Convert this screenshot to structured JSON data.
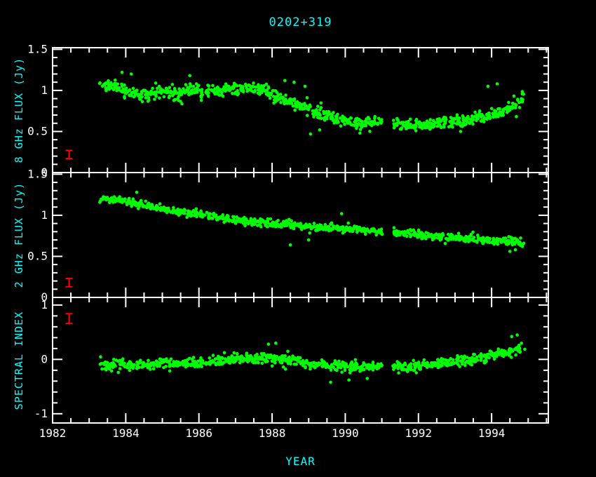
{
  "chart_data": {
    "type": "scatter",
    "title": "0202+319",
    "xlabel": "YEAR",
    "legend": "none",
    "grid": false,
    "x_axis": {
      "min": 1982,
      "max": 1995.55,
      "tick_values": [
        1982,
        1984,
        1986,
        1988,
        1990,
        1992,
        1994
      ],
      "tick_labels": [
        "1982",
        "1984",
        "1986",
        "1988",
        "1990",
        "1992",
        "1994"
      ],
      "minor_step": 0.5
    },
    "data_x_range": [
      1983.35,
      1994.85
    ],
    "gaps": [
      [
        1991.02,
        1991.3
      ]
    ],
    "colors": {
      "background": "#000000",
      "axis": "#ffffff",
      "tick_text": "#ffffff",
      "accent": "#00ffff",
      "data": "#00ff00",
      "error": "#ff0000"
    },
    "panels": [
      {
        "id": "8ghz-flux",
        "ylabel": "8 GHz FLUX (Jy)",
        "ylim": [
          0,
          1.52
        ],
        "ytick_values": [
          0,
          0.5,
          1,
          1.5
        ],
        "ytick_labels": [
          "0",
          "0.5",
          "1",
          "1.5"
        ],
        "minor_step": 0.1,
        "n_points": 850,
        "scatter_sigma": 0.035,
        "trend": [
          [
            1983.35,
            1.07
          ],
          [
            1983.7,
            1.04
          ],
          [
            1984.0,
            1.0
          ],
          [
            1984.35,
            0.96
          ],
          [
            1984.7,
            0.95
          ],
          [
            1985.0,
            0.99
          ],
          [
            1985.4,
            0.97
          ],
          [
            1985.8,
            1.0
          ],
          [
            1986.2,
            0.97
          ],
          [
            1986.6,
            1.0
          ],
          [
            1987.0,
            1.01
          ],
          [
            1987.4,
            1.03
          ],
          [
            1987.8,
            1.02
          ],
          [
            1988.1,
            0.92
          ],
          [
            1988.5,
            0.86
          ],
          [
            1989.0,
            0.78
          ],
          [
            1989.4,
            0.7
          ],
          [
            1989.8,
            0.65
          ],
          [
            1990.2,
            0.62
          ],
          [
            1990.6,
            0.6
          ],
          [
            1991.0,
            0.63
          ],
          [
            1991.4,
            0.6
          ],
          [
            1991.8,
            0.57
          ],
          [
            1992.2,
            0.58
          ],
          [
            1992.6,
            0.61
          ],
          [
            1993.0,
            0.63
          ],
          [
            1993.4,
            0.65
          ],
          [
            1993.8,
            0.68
          ],
          [
            1994.2,
            0.72
          ],
          [
            1994.5,
            0.78
          ],
          [
            1994.85,
            0.9
          ]
        ],
        "outliers": [
          [
            1983.9,
            1.22
          ],
          [
            1984.15,
            1.2
          ],
          [
            1985.75,
            1.18
          ],
          [
            1988.35,
            1.12
          ],
          [
            1988.6,
            1.1
          ],
          [
            1988.9,
            1.05
          ],
          [
            1989.05,
            0.47
          ],
          [
            1989.3,
            0.52
          ],
          [
            1990.4,
            0.48
          ],
          [
            1993.15,
            0.5
          ],
          [
            1993.9,
            1.05
          ],
          [
            1994.15,
            1.08
          ]
        ],
        "errorbar": {
          "x": 1982.45,
          "y": 0.22,
          "half": 0.05
        }
      },
      {
        "id": "2ghz-flux",
        "ylabel": "2 GHz FLUX (Jy)",
        "ylim": [
          0,
          1.52
        ],
        "ytick_values": [
          0,
          0.5,
          1,
          1.5
        ],
        "ytick_labels": [
          "0",
          "0.5",
          "1",
          "1.5"
        ],
        "minor_step": 0.1,
        "n_points": 800,
        "scatter_sigma": 0.022,
        "trend": [
          [
            1983.35,
            1.2
          ],
          [
            1984.0,
            1.17
          ],
          [
            1984.5,
            1.12
          ],
          [
            1985.0,
            1.08
          ],
          [
            1985.5,
            1.04
          ],
          [
            1986.0,
            1.01
          ],
          [
            1986.5,
            0.98
          ],
          [
            1987.0,
            0.95
          ],
          [
            1987.5,
            0.92
          ],
          [
            1988.0,
            0.9
          ],
          [
            1988.5,
            0.88
          ],
          [
            1989.0,
            0.86
          ],
          [
            1989.5,
            0.85
          ],
          [
            1990.0,
            0.84
          ],
          [
            1990.5,
            0.82
          ],
          [
            1991.0,
            0.8
          ],
          [
            1991.5,
            0.78
          ],
          [
            1992.0,
            0.76
          ],
          [
            1992.5,
            0.74
          ],
          [
            1993.0,
            0.72
          ],
          [
            1993.5,
            0.71
          ],
          [
            1994.0,
            0.7
          ],
          [
            1994.85,
            0.67
          ]
        ],
        "outliers": [
          [
            1984.3,
            1.28
          ],
          [
            1988.5,
            0.64
          ],
          [
            1989.9,
            1.02
          ],
          [
            1989.0,
            0.7
          ],
          [
            1994.5,
            0.56
          ],
          [
            1994.65,
            0.58
          ]
        ],
        "errorbar": {
          "x": 1982.45,
          "y": 0.18,
          "half": 0.05
        }
      },
      {
        "id": "spectral-index",
        "ylabel": "SPECTRAL INDEX",
        "ylim": [
          -1.17,
          1.14
        ],
        "ytick_values": [
          -1,
          0,
          1
        ],
        "ytick_labels": [
          "-1",
          "0",
          "1"
        ],
        "minor_step": 0.2,
        "n_points": 850,
        "scatter_sigma": 0.045,
        "trend": [
          [
            1983.35,
            -0.09
          ],
          [
            1984.0,
            -0.12
          ],
          [
            1984.5,
            -0.1
          ],
          [
            1985.0,
            -0.07
          ],
          [
            1985.5,
            -0.08
          ],
          [
            1986.0,
            -0.06
          ],
          [
            1986.5,
            -0.04
          ],
          [
            1987.0,
            -0.01
          ],
          [
            1987.5,
            0.02
          ],
          [
            1988.0,
            0.04
          ],
          [
            1988.4,
            -0.02
          ],
          [
            1989.0,
            -0.07
          ],
          [
            1989.5,
            -0.11
          ],
          [
            1990.0,
            -0.13
          ],
          [
            1990.5,
            -0.14
          ],
          [
            1991.0,
            -0.12
          ],
          [
            1991.5,
            -0.15
          ],
          [
            1992.0,
            -0.13
          ],
          [
            1992.5,
            -0.09
          ],
          [
            1993.0,
            -0.04
          ],
          [
            1993.5,
            0.01
          ],
          [
            1994.0,
            0.07
          ],
          [
            1994.4,
            0.13
          ],
          [
            1994.85,
            0.2
          ]
        ],
        "outliers": [
          [
            1987.9,
            0.28
          ],
          [
            1988.1,
            0.3
          ],
          [
            1989.6,
            -0.42
          ],
          [
            1990.1,
            -0.38
          ],
          [
            1990.6,
            -0.35
          ],
          [
            1994.55,
            0.42
          ],
          [
            1994.7,
            0.45
          ]
        ],
        "errorbar": {
          "x": 1982.45,
          "y": 0.75,
          "half": 0.09
        }
      }
    ]
  }
}
